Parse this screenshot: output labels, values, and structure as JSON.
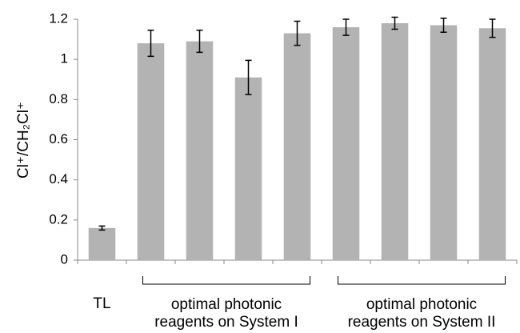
{
  "chart_data": {
    "type": "bar",
    "y_label": "Cl⁺/CH₂Cl⁺",
    "categories": [
      "TL",
      null,
      null,
      null,
      null,
      null,
      null,
      null,
      null
    ],
    "values": [
      0.16,
      1.08,
      1.09,
      0.91,
      1.13,
      1.16,
      1.18,
      1.17,
      1.155
    ],
    "errors": [
      0.01,
      0.065,
      0.055,
      0.085,
      0.06,
      0.04,
      0.03,
      0.035,
      0.045
    ],
    "color": "#b3b3b3",
    "ylim": [
      0,
      1.2
    ],
    "yticks": [
      0,
      0.2,
      0.4,
      0.6,
      0.8,
      1,
      1.2
    ],
    "groups": [
      {
        "lines": [
          "optimal photonic",
          "reagents on System I"
        ]
      },
      {
        "lines": [
          "optimal photonic",
          "reagents on System II"
        ]
      }
    ]
  }
}
